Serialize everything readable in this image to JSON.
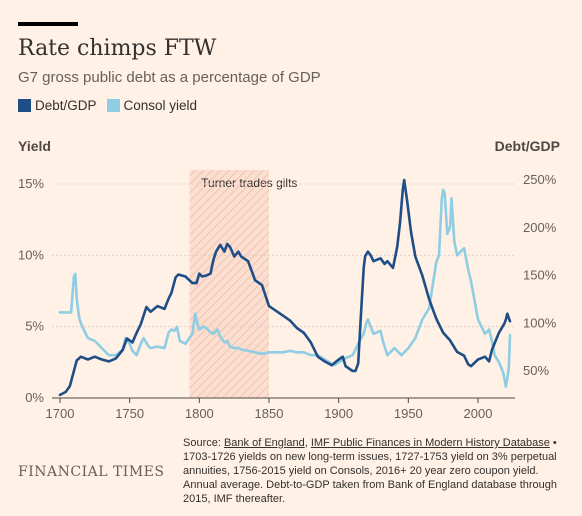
{
  "header": {
    "title": "Rate chimps FTW",
    "subtitle": "G7 gross public debt as a percentage of GDP"
  },
  "legend": [
    {
      "label": "Debt/GDP",
      "color": "#1f4e87"
    },
    {
      "label": "Consol yield",
      "color": "#8fcde3"
    }
  ],
  "axes": {
    "left_title": "Yield",
    "right_title": "Debt/GDP"
  },
  "annotation": {
    "label": "Turner trades gilts",
    "x_start": 1793,
    "x_end": 1850
  },
  "source": {
    "prefix": "Source: ",
    "link1": "Bank of England",
    "sep": ", ",
    "link2": "IMF Public Finances in Modern History Database",
    "rest": " • 1703-1726 yields on new long-term issues, 1727-1753 yield on 3% perpetual annuities, 1756-2015 yield on Consols, 2016+ 20 year zero coupon yield. Annual average. Debt-to-GDP taken from Bank of England database through 2015, IMF thereafter."
  },
  "brand": "FINANCIAL TIMES",
  "chart_data": {
    "type": "line",
    "x_ticks": [
      1700,
      1750,
      1800,
      1850,
      1900,
      1950,
      2000
    ],
    "x_tick_labels": [
      "1700",
      "1750",
      "1800",
      "1850",
      "1900",
      "1950",
      "2000"
    ],
    "xlim": [
      1700,
      2024
    ],
    "left_axis": {
      "label": "Yield",
      "ylim": [
        0,
        16
      ],
      "ticks": [
        0,
        5,
        10,
        15
      ],
      "tick_labels": [
        "0%",
        "5%",
        "10%",
        "15%"
      ]
    },
    "right_axis": {
      "label": "Debt/GDP",
      "ylim": [
        25,
        257
      ],
      "ticks": [
        50,
        100,
        150,
        200,
        250
      ],
      "tick_labels": [
        "50%",
        "100%",
        "150%",
        "200%",
        "250%"
      ]
    },
    "grid": true,
    "legend_position": "top-left",
    "series": [
      {
        "name": "Debt/GDP",
        "axis": "right",
        "color": "#1f4e87",
        "x": [
          1700,
          1704,
          1707,
          1710,
          1712,
          1715,
          1720,
          1725,
          1730,
          1735,
          1740,
          1745,
          1748,
          1752,
          1755,
          1758,
          1762,
          1765,
          1770,
          1775,
          1778,
          1780,
          1783,
          1785,
          1790,
          1795,
          1798,
          1800,
          1802,
          1805,
          1808,
          1810,
          1812,
          1815,
          1818,
          1820,
          1822,
          1825,
          1828,
          1830,
          1835,
          1840,
          1845,
          1850,
          1855,
          1860,
          1865,
          1870,
          1875,
          1880,
          1885,
          1890,
          1895,
          1900,
          1903,
          1905,
          1910,
          1912,
          1914,
          1916,
          1918,
          1919,
          1921,
          1923,
          1925,
          1930,
          1933,
          1935,
          1939,
          1942,
          1944,
          1946,
          1947,
          1949,
          1952,
          1955,
          1960,
          1965,
          1970,
          1975,
          1980,
          1985,
          1990,
          1993,
          1995,
          2000,
          2005,
          2008,
          2010,
          2015,
          2019,
          2020,
          2021,
          2023
        ],
        "y": [
          25,
          28,
          34,
          50,
          61,
          65,
          62,
          65,
          62,
          60,
          63,
          72,
          84,
          80,
          90,
          99,
          117,
          112,
          118,
          115,
          126,
          132,
          148,
          151,
          149,
          142,
          142,
          152,
          149,
          150,
          152,
          166,
          175,
          182,
          175,
          183,
          180,
          170,
          175,
          170,
          165,
          145,
          140,
          118,
          113,
          108,
          103,
          95,
          90,
          80,
          65,
          60,
          56,
          62,
          65,
          55,
          50,
          50,
          58,
          110,
          158,
          170,
          175,
          171,
          165,
          168,
          162,
          165,
          158,
          180,
          205,
          240,
          250,
          230,
          195,
          170,
          150,
          125,
          105,
          90,
          82,
          70,
          66,
          57,
          55,
          62,
          65,
          60,
          72,
          90,
          100,
          104,
          110,
          102
        ]
      },
      {
        "name": "Consol yield",
        "axis": "left",
        "color": "#8fcde3",
        "x": [
          1700,
          1703,
          1706,
          1708,
          1710,
          1711,
          1712,
          1713,
          1714,
          1716,
          1720,
          1725,
          1730,
          1735,
          1740,
          1745,
          1747,
          1750,
          1752,
          1755,
          1758,
          1760,
          1763,
          1765,
          1770,
          1775,
          1778,
          1780,
          1782,
          1784,
          1786,
          1790,
          1795,
          1797,
          1798,
          1799,
          1800,
          1803,
          1805,
          1808,
          1810,
          1813,
          1815,
          1818,
          1820,
          1822,
          1825,
          1828,
          1830,
          1835,
          1840,
          1845,
          1850,
          1855,
          1860,
          1865,
          1870,
          1875,
          1880,
          1885,
          1890,
          1895,
          1897,
          1900,
          1905,
          1910,
          1915,
          1918,
          1920,
          1921,
          1925,
          1930,
          1932,
          1935,
          1940,
          1945,
          1950,
          1955,
          1960,
          1965,
          1970,
          1972,
          1974,
          1975,
          1976,
          1978,
          1980,
          1981,
          1983,
          1985,
          1990,
          1993,
          1995,
          2000,
          2005,
          2008,
          2010,
          2012,
          2015,
          2018,
          2020,
          2022,
          2023
        ],
        "y": [
          6.0,
          6.0,
          6.0,
          6.0,
          8.5,
          8.7,
          7.0,
          6.2,
          5.5,
          5.0,
          4.2,
          4.0,
          3.5,
          3.0,
          3.0,
          3.4,
          4.2,
          3.8,
          3.3,
          3.0,
          3.8,
          4.2,
          3.7,
          3.5,
          3.6,
          3.5,
          4.6,
          4.8,
          4.7,
          5.0,
          4.0,
          3.8,
          4.5,
          5.9,
          5.5,
          5.1,
          4.8,
          5.0,
          4.9,
          4.6,
          4.5,
          4.8,
          4.3,
          3.9,
          4.0,
          3.6,
          3.5,
          3.5,
          3.4,
          3.3,
          3.2,
          3.1,
          3.2,
          3.2,
          3.2,
          3.3,
          3.2,
          3.2,
          3.0,
          3.0,
          2.7,
          2.4,
          2.3,
          2.5,
          2.8,
          3.0,
          4.0,
          4.5,
          5.3,
          5.5,
          4.5,
          4.7,
          3.9,
          3.0,
          3.5,
          3.0,
          3.5,
          4.2,
          5.5,
          6.3,
          9.5,
          10.0,
          14.0,
          14.6,
          14.4,
          11.5,
          12.0,
          14.0,
          11.0,
          10.0,
          10.5,
          9.0,
          8.2,
          5.5,
          4.5,
          4.8,
          4.0,
          3.0,
          2.5,
          1.8,
          0.8,
          2.0,
          4.4
        ]
      }
    ]
  }
}
